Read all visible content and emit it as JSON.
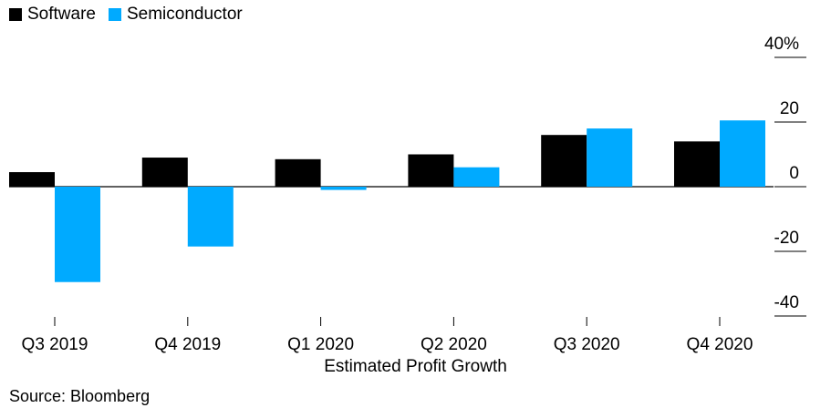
{
  "chart_data": {
    "type": "bar",
    "categories": [
      "Q3 2019",
      "Q4 2019",
      "Q1 2020",
      "Q2 2020",
      "Q3 2020",
      "Q4 2020"
    ],
    "series": [
      {
        "name": "Software",
        "color": "#000000",
        "values": [
          4.5,
          9,
          8.5,
          10,
          16,
          14
        ]
      },
      {
        "name": "Semiconductor",
        "color": "#00aaff",
        "values": [
          -29.5,
          -18.5,
          -1,
          6,
          18,
          20.5
        ]
      }
    ],
    "yticks": [
      40,
      20,
      0,
      -20,
      -40
    ],
    "ytick_labels": [
      "40%",
      "20",
      "0",
      "-20",
      "-40"
    ],
    "ylim": [
      -40,
      40
    ],
    "xlabel": "Estimated Profit Growth",
    "ylabel": "",
    "source": "Source: Bloomberg",
    "legend_position": "top-left"
  }
}
